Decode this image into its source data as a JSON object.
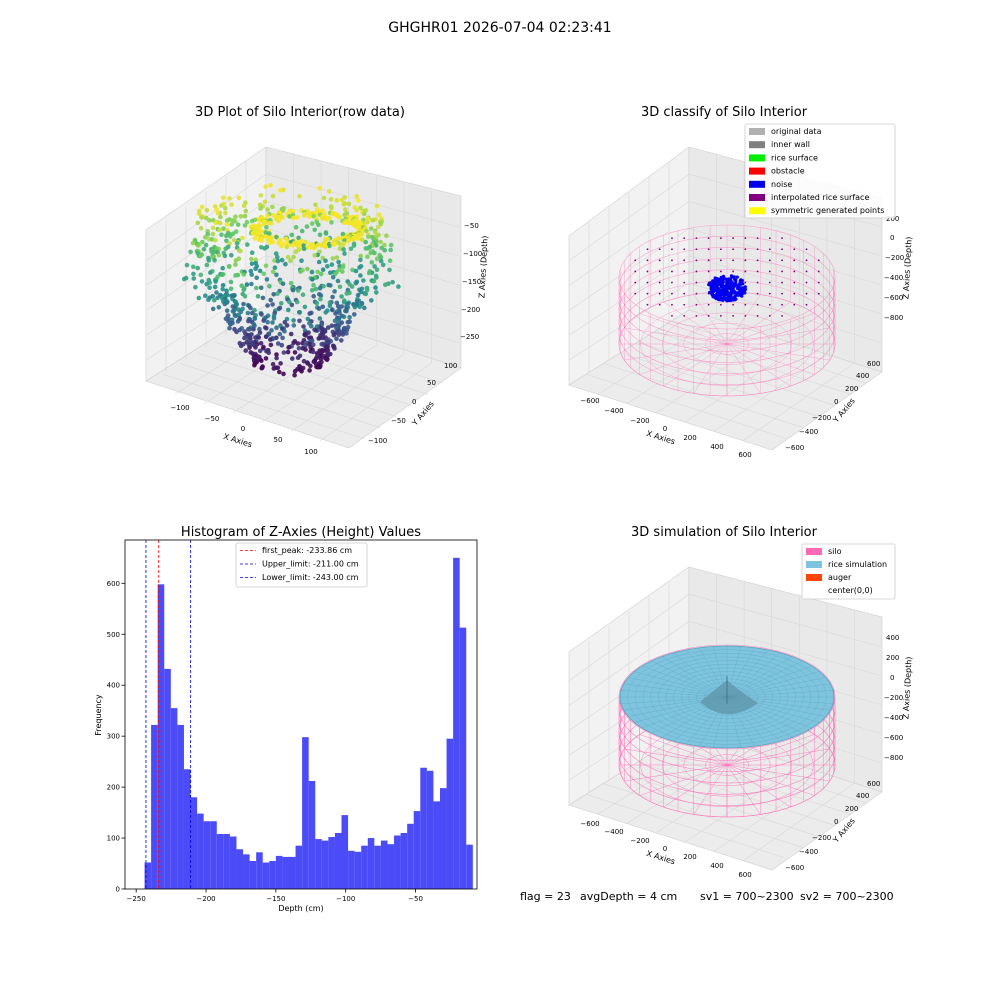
{
  "figure_title": "GHGHR01 2026-07-04 02:23:41",
  "colors": {
    "hist_bar": "#4b4bf7",
    "first_peak": "#ff0000",
    "limit_lines": "#0000cc",
    "silo_pink": "#ff69b4",
    "rice_blue": "#7fc4de",
    "noise_blue": "#0000ee",
    "pane_gray": "#f2f2f2"
  },
  "chart_data": [
    {
      "type": "scatter",
      "subtype": "3d-scatter",
      "title": "3D Plot of Silo Interior(row data)",
      "xlabel": "X Axies",
      "ylabel": "Y Axies",
      "zlabel": "Z Axies (Depth)",
      "x_ticks": [
        "−100",
        "−50",
        "0",
        "50",
        "100"
      ],
      "y_ticks": [
        "100",
        "50",
        "0",
        "−50",
        "−100"
      ],
      "z_ticks": [
        "−50",
        "−100",
        "−150",
        "−200",
        "−250"
      ],
      "xlim": [
        -130,
        130
      ],
      "ylim": [
        -130,
        130
      ],
      "zlim": [
        -260,
        -20
      ],
      "colormap": "viridis"
    },
    {
      "type": "scatter",
      "subtype": "3d-classification",
      "title": "3D classify of Silo Interior",
      "xlabel": "X Axies",
      "ylabel": "Y Axies",
      "zlabel": "Z Axies (Depth)",
      "x_ticks": [
        "−600",
        "−400",
        "−200",
        "0",
        "200",
        "400",
        "600"
      ],
      "y_ticks": [
        "600",
        "400",
        "200",
        "0",
        "−200",
        "−400",
        "−600"
      ],
      "z_ticks": [
        "200",
        "0",
        "−200",
        "−400",
        "−600",
        "−800"
      ],
      "legend_position": "top-right",
      "legend": [
        {
          "label": "original data",
          "color": "#b0b0b0"
        },
        {
          "label": "inner wall",
          "color": "#808080"
        },
        {
          "label": "rice surface",
          "color": "#00ee00"
        },
        {
          "label": "obstacle",
          "color": "#ff0000"
        },
        {
          "label": "noise",
          "color": "#0000ee"
        },
        {
          "label": "interpolated rice surface",
          "color": "#800080"
        },
        {
          "label": "symmetric generated points",
          "color": "#ffff00"
        }
      ]
    },
    {
      "type": "bar",
      "subtype": "histogram",
      "title": "Histogram of Z-Axies (Height) Values",
      "xlabel": "Depth (cm)",
      "ylabel": "Frequency",
      "xlim": [
        -258,
        -6
      ],
      "ylim": [
        0,
        685
      ],
      "x_ticks": [
        -250,
        -200,
        -150,
        -100,
        -50
      ],
      "y_ticks": [
        0,
        100,
        200,
        300,
        400,
        500,
        600
      ],
      "bin_start": -244,
      "bin_width": 4.7,
      "values": [
        52,
        322,
        598,
        432,
        355,
        322,
        235,
        180,
        148,
        133,
        133,
        108,
        108,
        103,
        78,
        68,
        55,
        72,
        52,
        55,
        65,
        63,
        63,
        85,
        298,
        212,
        98,
        95,
        102,
        110,
        145,
        75,
        73,
        85,
        100,
        85,
        95,
        88,
        105,
        110,
        128,
        153,
        238,
        232,
        172,
        198,
        295,
        650,
        513,
        87
      ],
      "vlines": [
        {
          "label": "first_peak: -233.86 cm",
          "x": -233.86,
          "color": "#ff0000"
        },
        {
          "label": "Upper_limit: -211.00 cm",
          "x": -211.0,
          "color": "#0000cc"
        },
        {
          "label": "Lower_limit: -243.00 cm",
          "x": -243.0,
          "color": "#0000cc"
        }
      ],
      "legend_position": "top-center"
    },
    {
      "type": "area",
      "subtype": "3d-surface",
      "title": "3D simulation of Silo Interior",
      "xlabel": "X Axies",
      "ylabel": "Y Axies",
      "zlabel": "Z Axies (Depth)",
      "x_ticks": [
        "−600",
        "−400",
        "−200",
        "0",
        "200",
        "400",
        "600"
      ],
      "y_ticks": [
        "600",
        "400",
        "200",
        "0",
        "−200",
        "−400",
        "−600"
      ],
      "z_ticks": [
        "400",
        "200",
        "0",
        "−200",
        "−400",
        "−600",
        "−800"
      ],
      "legend_position": "top-right",
      "legend": [
        {
          "label": "silo",
          "color": "#ff69b4"
        },
        {
          "label": "rice simulation",
          "color": "#7fc4de"
        },
        {
          "label": "auger",
          "color": "#ff4500"
        },
        {
          "label": "center(0,0)",
          "color": ""
        }
      ]
    }
  ],
  "status": {
    "flag": "flag = 23",
    "avg_depth": "avgDepth = 4 cm",
    "sv1": "sv1 = 700~2300",
    "sv2": "sv2 = 700~2300"
  }
}
